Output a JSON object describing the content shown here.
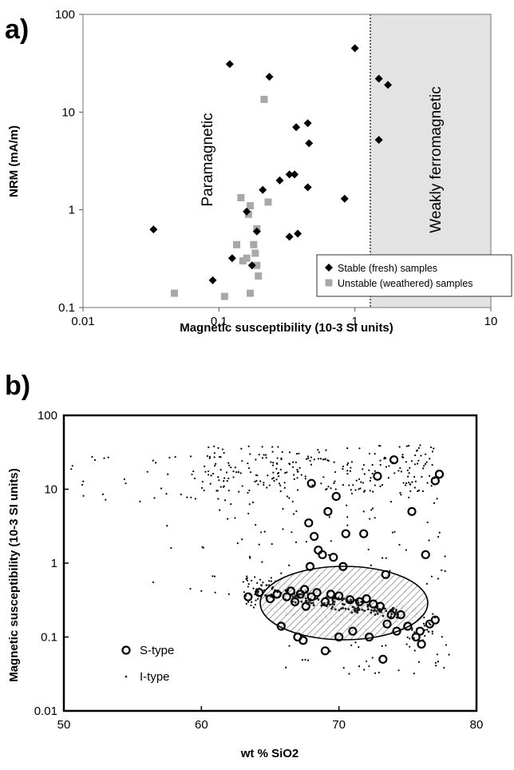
{
  "chart_data": [
    {
      "panel": "a)",
      "type": "scatter",
      "xlabel": "Magnetic susceptibility (10-3 SI units)",
      "ylabel": "NRM (mA/m)",
      "xscale": "log",
      "yscale": "log",
      "xlim": [
        0.01,
        10
      ],
      "ylim": [
        0.1,
        100
      ],
      "xticks": [
        "0.01",
        "0.1",
        "1",
        "10"
      ],
      "yticks": [
        "0.1",
        "1",
        "10",
        "100"
      ],
      "grid": false,
      "legend_position": "bottom-right",
      "annotations": [
        "Paramagnetic",
        "Weakly ferromagnetic"
      ],
      "ferromagnetic_boundary_x": 1.3,
      "series": [
        {
          "name": "Stable (fresh) samples",
          "marker": "diamond",
          "color": "#000000",
          "points": [
            [
              0.033,
              0.63
            ],
            [
              0.09,
              0.19
            ],
            [
              0.12,
              31
            ],
            [
              0.125,
              0.32
            ],
            [
              0.16,
              0.96
            ],
            [
              0.175,
              0.27
            ],
            [
              0.19,
              0.6
            ],
            [
              0.21,
              1.6
            ],
            [
              0.235,
              23
            ],
            [
              0.28,
              2.0
            ],
            [
              0.33,
              0.53
            ],
            [
              0.33,
              2.3
            ],
            [
              0.36,
              2.3
            ],
            [
              0.37,
              7.0
            ],
            [
              0.38,
              0.57
            ],
            [
              0.45,
              7.7
            ],
            [
              0.45,
              1.7
            ],
            [
              0.46,
              4.8
            ],
            [
              0.84,
              1.3
            ],
            [
              1.0,
              45
            ],
            [
              1.5,
              22
            ],
            [
              1.5,
              5.2
            ],
            [
              1.75,
              19
            ]
          ]
        },
        {
          "name": "Unstable (weathered) samples",
          "marker": "square",
          "color": "#a8a8a8",
          "points": [
            [
              0.047,
              0.14
            ],
            [
              0.11,
              0.13
            ],
            [
              0.135,
              0.44
            ],
            [
              0.145,
              1.33
            ],
            [
              0.15,
              0.3
            ],
            [
              0.16,
              0.32
            ],
            [
              0.165,
              0.9
            ],
            [
              0.17,
              1.1
            ],
            [
              0.17,
              0.14
            ],
            [
              0.18,
              0.44
            ],
            [
              0.185,
              0.36
            ],
            [
              0.19,
              0.64
            ],
            [
              0.19,
              0.27
            ],
            [
              0.195,
              0.21
            ],
            [
              0.215,
              13.5
            ],
            [
              0.23,
              1.2
            ]
          ]
        }
      ]
    },
    {
      "panel": "b)",
      "type": "scatter",
      "xlabel": "wt % SiO2",
      "ylabel": "Magnetic susceptibility (10-3 SI units)",
      "xscale": "linear",
      "yscale": "log",
      "xlim": [
        50,
        80
      ],
      "ylim": [
        0.01,
        100
      ],
      "xticks": [
        "50",
        "60",
        "70",
        "80"
      ],
      "yticks": [
        "0.01",
        "0.1",
        "1",
        "10",
        "100"
      ],
      "grid": false,
      "legend_position": "bottom-left",
      "highlight_region": {
        "shape": "ellipse",
        "center": [
          68.4,
          0.35
        ],
        "semi_axis_x": 5.2,
        "y_range": [
          0.12,
          1.0
        ],
        "fill": "hatched"
      },
      "series": [
        {
          "name": "S-type",
          "marker": "open-circle",
          "color": "#000000",
          "points": [
            [
              63.4,
              0.35
            ],
            [
              64.2,
              0.4
            ],
            [
              65.0,
              0.33
            ],
            [
              65.5,
              0.38
            ],
            [
              65.8,
              0.14
            ],
            [
              66.2,
              0.35
            ],
            [
              66.5,
              0.42
            ],
            [
              66.8,
              0.3
            ],
            [
              67.0,
              0.1
            ],
            [
              67.2,
              0.38
            ],
            [
              67.4,
              0.09
            ],
            [
              67.5,
              0.44
            ],
            [
              67.6,
              0.26
            ],
            [
              67.8,
              3.5
            ],
            [
              67.9,
              0.9
            ],
            [
              68.0,
              0.35
            ],
            [
              68.0,
              12
            ],
            [
              68.2,
              2.3
            ],
            [
              68.4,
              0.4
            ],
            [
              68.5,
              1.5
            ],
            [
              68.8,
              1.3
            ],
            [
              69.0,
              0.3
            ],
            [
              69.0,
              0.065
            ],
            [
              69.2,
              5.0
            ],
            [
              69.4,
              0.38
            ],
            [
              69.6,
              1.2
            ],
            [
              69.8,
              8.0
            ],
            [
              70.0,
              0.36
            ],
            [
              70.0,
              0.1
            ],
            [
              70.3,
              0.9
            ],
            [
              70.5,
              2.5
            ],
            [
              70.8,
              0.32
            ],
            [
              71.0,
              0.12
            ],
            [
              71.5,
              0.3
            ],
            [
              71.8,
              2.5
            ],
            [
              72.0,
              0.33
            ],
            [
              72.2,
              0.1
            ],
            [
              72.5,
              0.28
            ],
            [
              72.8,
              15
            ],
            [
              73.0,
              0.26
            ],
            [
              73.2,
              0.05
            ],
            [
              73.4,
              0.7
            ],
            [
              73.5,
              0.15
            ],
            [
              73.8,
              0.2
            ],
            [
              74.0,
              25
            ],
            [
              74.2,
              0.12
            ],
            [
              74.5,
              0.2
            ],
            [
              75.0,
              0.14
            ],
            [
              75.3,
              5.0
            ],
            [
              75.6,
              0.1
            ],
            [
              75.9,
              0.12
            ],
            [
              76.0,
              0.08
            ],
            [
              76.3,
              1.3
            ],
            [
              76.6,
              0.15
            ],
            [
              77.0,
              0.17
            ],
            [
              77.0,
              13
            ],
            [
              77.3,
              16
            ]
          ]
        },
        {
          "name": "I-type",
          "marker": "dot",
          "color": "#000000",
          "points": "many (~700) small dots; densest band 60-77 wt% SiO2 at ~10-40, a main trend 63-77 wt% at ~0.2-0.5, and sparse points 50-60 wt% at ~5-30"
        }
      ]
    }
  ]
}
